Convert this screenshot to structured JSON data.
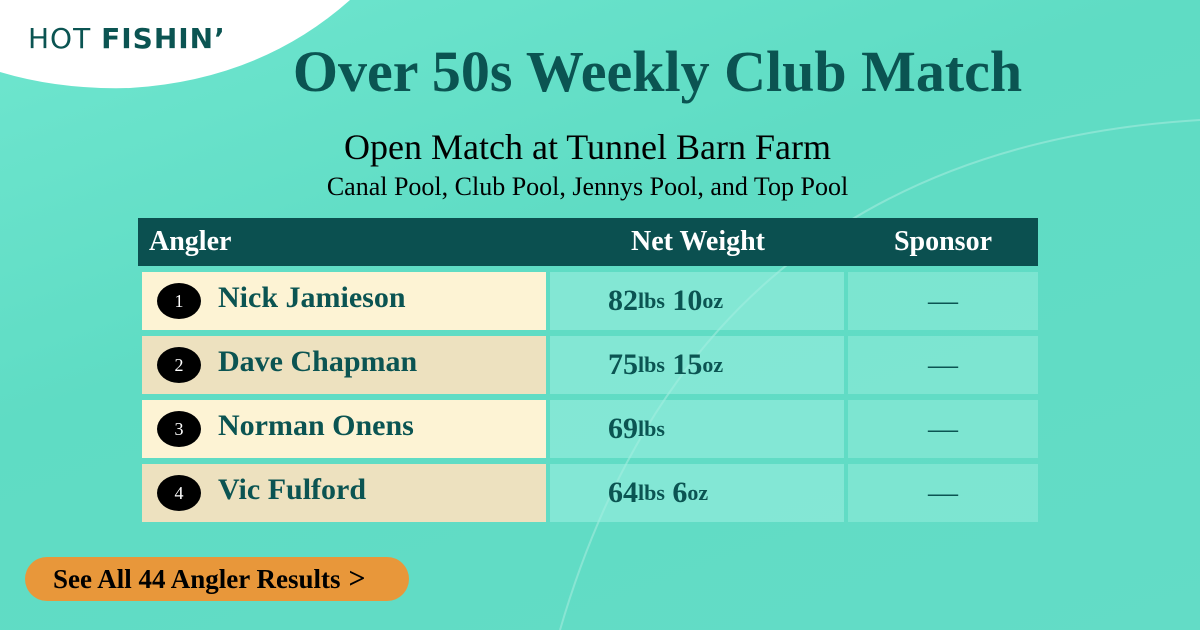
{
  "logo": {
    "light": "HOT",
    "bold": "FISHIN’"
  },
  "title": "Over 50s Weekly Club Match",
  "subtitle": "Open Match at Tunnel Barn Farm",
  "pools": "Canal Pool, Club Pool, Jennys Pool, and Top Pool",
  "table": {
    "headers": [
      "Angler",
      "Net Weight",
      "Sponsor"
    ],
    "rows": [
      {
        "rank": "1",
        "name": "Nick Jamieson",
        "lbs": "82",
        "lbs_unit": "lbs",
        "oz": "10",
        "oz_unit": "oz",
        "sponsor": "—"
      },
      {
        "rank": "2",
        "name": "Dave Chapman",
        "lbs": "75",
        "lbs_unit": "lbs",
        "oz": "15",
        "oz_unit": "oz",
        "sponsor": "—"
      },
      {
        "rank": "3",
        "name": "Norman Onens",
        "lbs": "69",
        "lbs_unit": "lbs",
        "oz": "",
        "oz_unit": "",
        "sponsor": "—"
      },
      {
        "rank": "4",
        "name": "Vic Fulford",
        "lbs": "64",
        "lbs_unit": "lbs",
        "oz": "6",
        "oz_unit": "oz",
        "sponsor": "—"
      }
    ]
  },
  "cta": {
    "label": "See All 44 Angler Results",
    "icon": "chevron-right-icon"
  },
  "colors": {
    "brand": "#0b5452",
    "accent": "#e8973a",
    "header": "#0b5050"
  }
}
